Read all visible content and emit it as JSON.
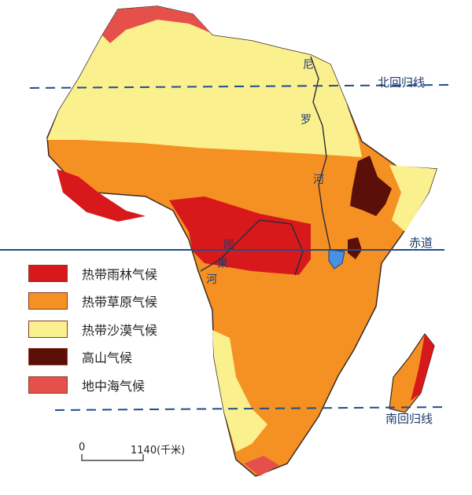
{
  "legend": {
    "items": [
      {
        "label": "热带雨林气候",
        "color": "#d7191c"
      },
      {
        "label": "热带草原气候",
        "color": "#f59123"
      },
      {
        "label": "热带沙漠气候",
        "color": "#fbf08e"
      },
      {
        "label": "高山气候",
        "color": "#5a0f08"
      },
      {
        "label": "地中海气候",
        "color": "#e6504a"
      }
    ]
  },
  "lines": {
    "tropic_north": "北回归线",
    "equator": "赤道",
    "tropic_south": "南回归线"
  },
  "rivers": {
    "nile": [
      "尼",
      "罗",
      "河"
    ],
    "congo": [
      "刚",
      "果",
      "河"
    ]
  },
  "scale": {
    "start": "0",
    "end": "1140(千米)"
  },
  "colors": {
    "lines": "#1f4e8c",
    "lake": "#4a90e2",
    "border": "#3b2a25"
  }
}
